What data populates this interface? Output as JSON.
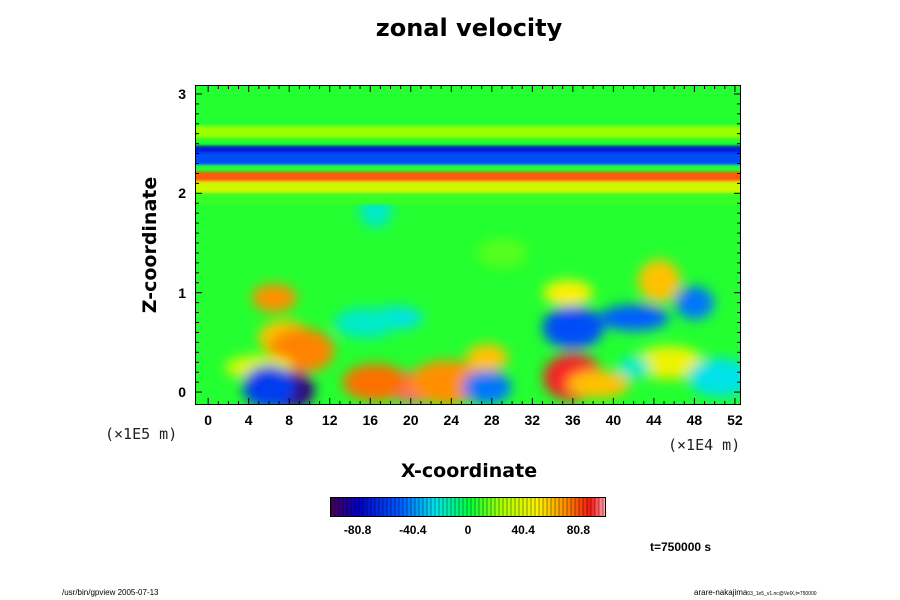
{
  "chart_data": {
    "type": "heatmap",
    "title": "zonal velocity",
    "xlabel": "X-coordinate",
    "ylabel": "Z-coordinate",
    "x_tick_labels": [
      "0",
      "4",
      "8",
      "12",
      "16",
      "20",
      "24",
      "28",
      "32",
      "36",
      "40",
      "44",
      "48",
      "52"
    ],
    "x_ticks": [
      0,
      4,
      8,
      12,
      16,
      20,
      24,
      28,
      32,
      36,
      40,
      44,
      48,
      52
    ],
    "xlim": [
      -1.2,
      52.5
    ],
    "x_scale_label": "(×1E4 m)",
    "y_tick_labels": [
      "0",
      "1",
      "2",
      "3"
    ],
    "y_ticks": [
      0,
      1,
      2,
      3
    ],
    "ylim": [
      -0.12,
      3.08
    ],
    "y_scale_label": "(×1E5 m)",
    "colorbar": {
      "tick_labels": [
        "-80.8",
        "-40.4",
        "0",
        "40.4",
        "80.8"
      ],
      "ticks": [
        -80.8,
        -40.4,
        0,
        40.4,
        80.8
      ],
      "range": [
        -101,
        101
      ],
      "colormap": "rainbow"
    },
    "background_value": 5,
    "bands": [
      {
        "z": 2.62,
        "value": 22
      },
      {
        "z": 2.42,
        "value": -72
      },
      {
        "z": 2.35,
        "value": -55
      },
      {
        "z": 2.16,
        "value": 78
      },
      {
        "z": 2.06,
        "value": 35
      },
      {
        "z": 1.95,
        "value": 8
      }
    ],
    "features": [
      {
        "x": 6.5,
        "z": 0.95,
        "value": 70
      },
      {
        "x": 7.5,
        "z": 0.55,
        "value": 60
      },
      {
        "x": 9.2,
        "z": 0.42,
        "value": 72
      },
      {
        "x": 5.0,
        "z": 0.25,
        "value": 40
      },
      {
        "x": 8.0,
        "z": 0.02,
        "value": -95
      },
      {
        "x": 6.0,
        "z": 0.05,
        "value": -60
      },
      {
        "x": 18.5,
        "z": 0.75,
        "value": -25
      },
      {
        "x": 15.5,
        "z": 0.7,
        "value": -20
      },
      {
        "x": 16.5,
        "z": 1.85,
        "value": -20
      },
      {
        "x": 20.5,
        "z": 0.05,
        "value": 95
      },
      {
        "x": 16.5,
        "z": 0.1,
        "value": 75
      },
      {
        "x": 23.5,
        "z": 0.1,
        "value": 70
      },
      {
        "x": 27.5,
        "z": 0.35,
        "value": 60
      },
      {
        "x": 27.5,
        "z": 0.05,
        "value": -45
      },
      {
        "x": 36.0,
        "z": 0.65,
        "value": -55
      },
      {
        "x": 42.0,
        "z": 0.75,
        "value": -50
      },
      {
        "x": 48.0,
        "z": 0.9,
        "value": -45
      },
      {
        "x": 36.0,
        "z": 0.15,
        "value": 90
      },
      {
        "x": 38.5,
        "z": 0.08,
        "value": 60
      },
      {
        "x": 45.5,
        "z": 0.3,
        "value": 45
      },
      {
        "x": 44.5,
        "z": 1.12,
        "value": 60
      },
      {
        "x": 35.5,
        "z": 1.0,
        "value": 50
      },
      {
        "x": 29.0,
        "z": 1.4,
        "value": 12
      },
      {
        "x": 50.5,
        "z": 0.15,
        "value": -25
      },
      {
        "x": 42.0,
        "z": 0.25,
        "value": -20
      }
    ],
    "time_label": "t=750000 s"
  },
  "footer": {
    "left": "/usr/bin/gpview 2005-07-13",
    "right_main": "arare-nakajima",
    "right_small": "03_1e5_v1.nc@VelX,t=750000"
  },
  "colors": {
    "background": "#ffffff",
    "axes": "#000000"
  }
}
